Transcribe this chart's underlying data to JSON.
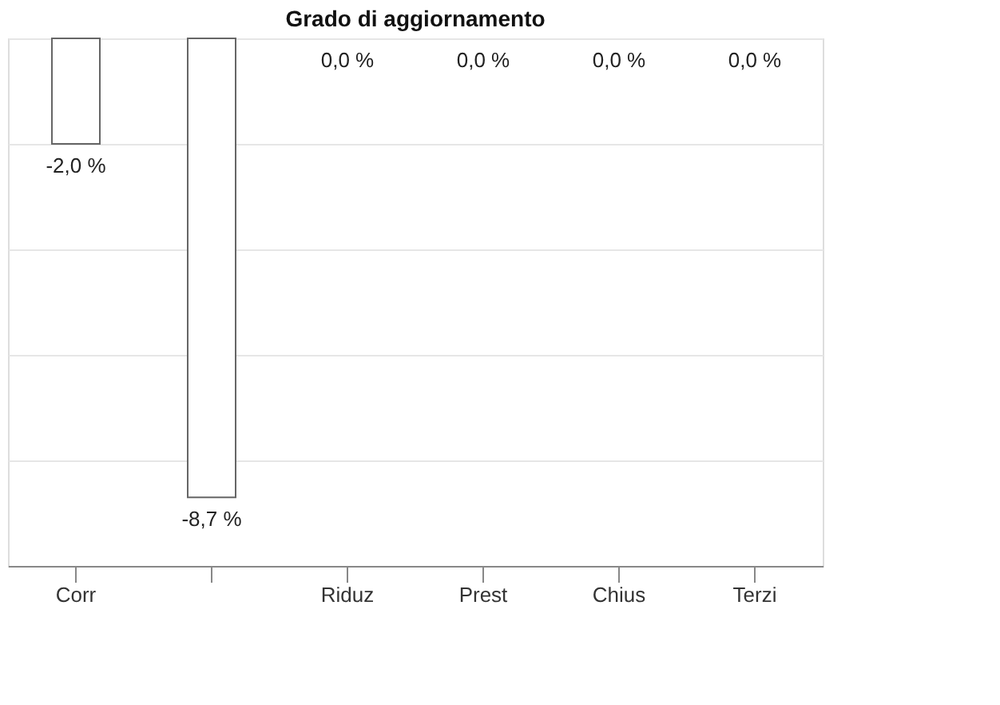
{
  "chart_data": {
    "type": "bar",
    "title": "Grado di aggiornamento",
    "categories": [
      "Corr",
      null,
      "Riduz",
      "Prest",
      "Chius",
      "Terzi"
    ],
    "values": [
      -2.0,
      -8.7,
      0.0,
      0.0,
      0.0,
      0.0
    ],
    "value_labels": [
      "-2,0 %",
      "-8,7 %",
      "0,0 %",
      "0,0 %",
      "0,0 %",
      "0,0 %"
    ],
    "color": "#ffffff",
    "ylim": [
      -10,
      0
    ],
    "yticks": [
      {
        "value": 0,
        "label": null
      },
      {
        "value": -2,
        "label": null
      },
      {
        "value": -4,
        "label": null
      },
      {
        "value": -6,
        "label": null
      },
      {
        "value": -8,
        "label": null
      },
      {
        "value": -10,
        "label": null
      }
    ],
    "grid": "y",
    "tick_labels": "x"
  }
}
